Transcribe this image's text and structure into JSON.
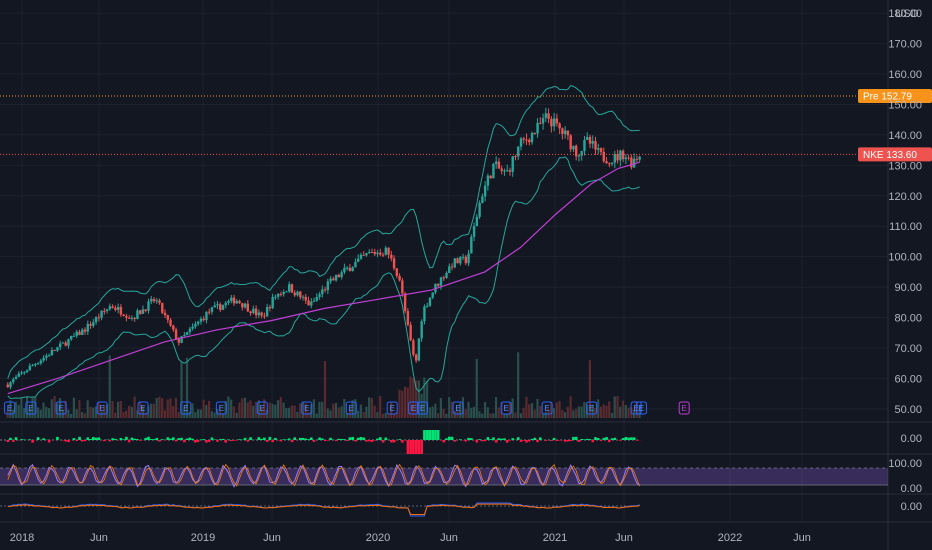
{
  "currency": "USD",
  "colors": {
    "background": "#131722",
    "grid": "#1e222d",
    "text": "#b2b5be",
    "up": "#26a69a",
    "down": "#ef5350",
    "bollinger": "#26a69a",
    "sma": "#c13fd6",
    "pre_badge": "#f7931a",
    "nke_badge": "#ef5350",
    "osc_line": "#9c7bff",
    "osc_band": "#7e57c2",
    "histogram_up": "#00e676",
    "histogram_down": "#ff1744"
  },
  "chart_data": {
    "type": "line",
    "symbol": "NKE",
    "x_ticks": [
      "2018",
      "Jun",
      "2019",
      "Jun",
      "2020",
      "Jun",
      "2021",
      "Jun",
      "2022",
      "Jun"
    ],
    "price_axis": {
      "ticks": [
        180.0,
        170.0,
        160.0,
        150.0,
        140.0,
        130.0,
        120.0,
        110.0,
        100.0,
        90.0,
        80.0,
        70.0,
        60.0,
        50.0
      ],
      "range": [
        47,
        183
      ]
    },
    "price_path": {
      "x": [
        2017.92,
        2018.05,
        2018.2,
        2018.35,
        2018.5,
        2018.62,
        2018.75,
        2018.88,
        2018.95,
        2019.05,
        2019.2,
        2019.35,
        2019.42,
        2019.5,
        2019.62,
        2019.72,
        2019.85,
        2019.95,
        2020.05,
        2020.12,
        2020.17,
        2020.21,
        2020.25,
        2020.32,
        2020.42,
        2020.5,
        2020.58,
        2020.65,
        2020.72,
        2020.8,
        2020.88,
        2020.95,
        2021.05,
        2021.12,
        2021.18,
        2021.25,
        2021.32,
        2021.38,
        2021.42,
        2021.47
      ],
      "y": [
        58,
        64,
        70,
        76,
        84,
        80,
        86,
        72,
        76,
        82,
        86,
        80,
        87,
        90,
        84,
        91,
        97,
        101,
        102,
        93,
        76,
        64,
        82,
        90,
        98,
        99,
        120,
        130,
        127,
        137,
        141,
        146,
        140,
        134,
        138,
        133,
        132,
        134,
        131,
        133.6
      ]
    },
    "sma_path": {
      "x": [
        2017.92,
        2018.2,
        2018.5,
        2018.8,
        2019.1,
        2019.4,
        2019.7,
        2020.0,
        2020.3,
        2020.6,
        2020.8,
        2021.0,
        2021.2,
        2021.35,
        2021.47
      ],
      "y": [
        55,
        60,
        66,
        72,
        76,
        79,
        83,
        86,
        89,
        95,
        103,
        114,
        124,
        129,
        131
      ]
    },
    "lines": [
      {
        "label": "Pre",
        "value": 152.79
      },
      {
        "label": "NKE",
        "value": 133.6
      }
    ],
    "events": {
      "x": [
        2017.93,
        2018.05,
        2018.22,
        2018.45,
        2018.68,
        2018.92,
        2019.12,
        2019.35,
        2019.6,
        2019.85,
        2020.08,
        2020.2,
        2020.25,
        2020.45,
        2020.72,
        2020.95,
        2021.2,
        2021.45,
        2021.48,
        2021.72
      ],
      "labels": [
        "E",
        "E",
        "E",
        "E",
        "E",
        "E",
        "E",
        "E",
        "E",
        "E",
        "E",
        "E",
        "E",
        "E",
        "E",
        "E",
        "E",
        "E",
        "E",
        "E"
      ]
    },
    "histogram_axis": {
      "ticks": [
        "0.00"
      ]
    },
    "oscillator_axis": {
      "ticks": [
        "100.00",
        "0.00"
      ]
    },
    "macd_axis": {
      "ticks": [
        "0.00"
      ]
    }
  }
}
